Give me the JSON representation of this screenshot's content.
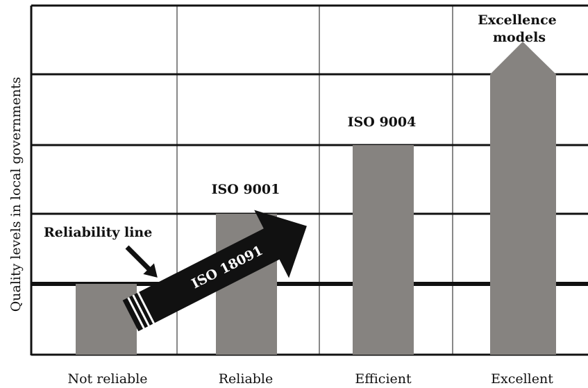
{
  "diagram": {
    "y_axis_label": "Quality levels in local governments",
    "categories": [
      {
        "id": "not-reliable",
        "label": "Not reliable",
        "level": 1
      },
      {
        "id": "reliable",
        "label": "Reliable",
        "level": 2
      },
      {
        "id": "efficient",
        "label": "Efficient",
        "level": 3
      },
      {
        "id": "excellent",
        "label": "Excellent",
        "level": 4
      }
    ],
    "levels": 5,
    "standards": {
      "iso_9001": "ISO 9001",
      "iso_9004": "ISO 9004",
      "excellence_line1": "Excellence",
      "excellence_line2": "models",
      "iso_18091": "ISO 18091"
    },
    "reliability_label": "Reliability line",
    "reliability_level": 1,
    "colors": {
      "bar": "#868380",
      "arrow": "#111111",
      "grid": "#111111",
      "text": "#111111"
    }
  }
}
